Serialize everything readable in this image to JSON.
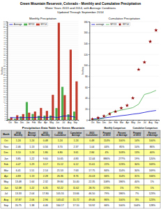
{
  "title": "Green Mountain Reservoir, Colorado - Monthly and Cumulative Precipitation",
  "subtitle": [
    "Water Years 2013 and 2014, with Average Conditions",
    "Updated Through September 2014"
  ],
  "chart_data": [
    {
      "type": "bar",
      "title": "Monthly Precipitation",
      "y_label": "Inches",
      "categories": [
        "Oct",
        "Nov",
        "Dec",
        "Jan",
        "Feb",
        "Mar",
        "Apr",
        "May",
        "Jun",
        "Jul",
        "Aug",
        "Sep"
      ],
      "series": [
        {
          "name": "Average",
          "type": "line",
          "color": "#0000cd",
          "values": [
            1.24,
            1.13,
            1.24,
            1.22,
            1.29,
            1.51,
            1.13,
            1.64,
            1.22,
            2.04,
            2.06,
            1.38
          ]
        },
        {
          "name": "WY13",
          "type": "bar",
          "color": "#4CAF50",
          "values": [
            0.48,
            0.56,
            1.8,
            9.6,
            3.17,
            2.14,
            2.28,
            2.32,
            6.35,
            17.8,
            2.96,
            4.46
          ]
        },
        {
          "name": "WY14",
          "type": "bar",
          "color": "#c0392b",
          "values": [
            1.24,
            2.46,
            3.1,
            3.85,
            4.47,
            6.41,
            4.83,
            13.48,
            52.38,
            13.33,
            37.87,
            20.75
          ]
        }
      ],
      "ylim": [
        0,
        53
      ],
      "yticks": [
        0,
        1,
        2,
        3,
        4,
        5,
        6,
        7,
        8,
        9,
        10,
        11,
        12,
        13,
        14,
        15,
        16,
        17,
        18,
        19,
        20,
        21,
        22,
        23,
        24,
        25,
        26,
        27,
        28,
        29,
        30,
        31,
        32,
        33,
        34,
        35,
        36,
        37,
        38,
        39,
        40,
        41,
        42,
        43,
        44,
        45,
        46,
        47,
        48,
        49,
        50,
        51,
        52,
        53
      ],
      "grid": true,
      "legend": "upper left"
    },
    {
      "type": "line",
      "title": "Cumulative Precipitation",
      "y_label": "Inches",
      "categories": [
        "Oct",
        "Nov",
        "Dec",
        "Jan",
        "Feb",
        "Mar",
        "Apr",
        "May",
        "Jun",
        "Jul",
        "Aug",
        "Sep"
      ],
      "series": [
        {
          "name": "average",
          "type": "line",
          "color": "#0000cd",
          "values": [
            1.24,
            2.37,
            3.61,
            4.83,
            6.12,
            7.63,
            8.76,
            10.4,
            11.62,
            13.66,
            15.72,
            17.1
          ]
        },
        {
          "name": "WY13",
          "type": "line",
          "color": "#4CAF50",
          "values": [
            0.48,
            1.04,
            2.84,
            12.44,
            15.61,
            17.75,
            20.03,
            22.35,
            28.7,
            46.5,
            49.46,
            53.92
          ]
        },
        {
          "name": "WY14",
          "type": "scatter",
          "marker": "star",
          "color": "#8b0000",
          "values": [
            1.24,
            3.7,
            6.8,
            10.65,
            15.12,
            21.53,
            26.36,
            39.84,
            92.22,
            105.55,
            143.42,
            164.17
          ]
        }
      ],
      "ylim": [
        0,
        180
      ],
      "yticks": [
        0,
        20,
        40,
        60,
        80,
        100,
        120,
        140,
        160,
        180
      ],
      "grid": true,
      "legend": "upper left"
    },
    {
      "type": "table",
      "title": "Precipitation Data Table for Green Mountain",
      "column_groups": [
        {
          "name": "Monthly Comparison",
          "span": [
            7,
            8
          ]
        },
        {
          "name": "Cumulative Comparison",
          "span": [
            9,
            10
          ]
        }
      ],
      "columns": [
        "Month",
        "2014\nMonthly",
        "Recent\nAverage",
        "2013\nMonthly",
        "2014\nCumulative",
        "Cumulative\nAverage",
        "2013\nCumulative",
        "Percent\nof 2013",
        "Percent\nof Average",
        "Percent\nof 2013",
        "Percent\nof Average"
      ],
      "rows": [
        [
          "Oct",
          "1.24",
          "1.24",
          "0.48",
          "1.24",
          "1.24",
          "0.48",
          "114%",
          "100%",
          "14%",
          "100%"
        ],
        [
          "Nov",
          "2.46",
          "1.13",
          "0.56",
          "3.70",
          "2.37",
          "1.04",
          "44%",
          "85%",
          "10%",
          "86%"
        ],
        [
          "Dec",
          "3.10",
          "1.24",
          "1.80",
          "6.80",
          "3.61",
          "2.84",
          "4%",
          "103%",
          "13%",
          "40%"
        ],
        [
          "Jan",
          "3.85",
          "1.22",
          "9.60",
          "10.65",
          "4.83",
          "12.44",
          "886%",
          "277%",
          "19%",
          "120%"
        ],
        [
          "Feb",
          "4.47",
          "1.29",
          "3.17",
          "15.12",
          "6.12",
          "15.61",
          "22%",
          "123%",
          "30%",
          "169%"
        ],
        [
          "Mar",
          "6.41",
          "1.51",
          "2.14",
          "21.53",
          "7.63",
          "17.75",
          "84%",
          "114%",
          "30%",
          "169%"
        ],
        [
          "Apr",
          "4.83",
          "1.13",
          "2.28",
          "26.36",
          "8.76",
          "20.03",
          "66%",
          "114%",
          "31%",
          "166%"
        ],
        [
          "May",
          "13.48",
          "1.64",
          "2.32",
          "39.84",
          "10.40",
          "22.35",
          "108%",
          "186%",
          "40%",
          "1%"
        ],
        [
          "Jun",
          "52.38",
          "1.22",
          "6.35",
          "92.22",
          "11.62",
          "28.70",
          "173%",
          "1%",
          "77%",
          "1%"
        ],
        [
          "Jul",
          "13.33",
          "2.04",
          "17.80",
          "105.55",
          "13.66",
          "46.50",
          "79%",
          "186%",
          "7%",
          "123%"
        ],
        [
          "Aug",
          "37.87",
          "2.06",
          "2.96",
          "143.42",
          "15.72",
          "49.46",
          "86%",
          "100%",
          "3%",
          "123%"
        ],
        [
          "Sep",
          "20.75",
          "1.38",
          "4.46",
          "164.17",
          "17.10",
          "53.92",
          "66%",
          "100%",
          "104%",
          "128%"
        ]
      ],
      "colors": [
        "#c8c8c8",
        "#ffff99",
        "#ffffff"
      ]
    }
  ]
}
